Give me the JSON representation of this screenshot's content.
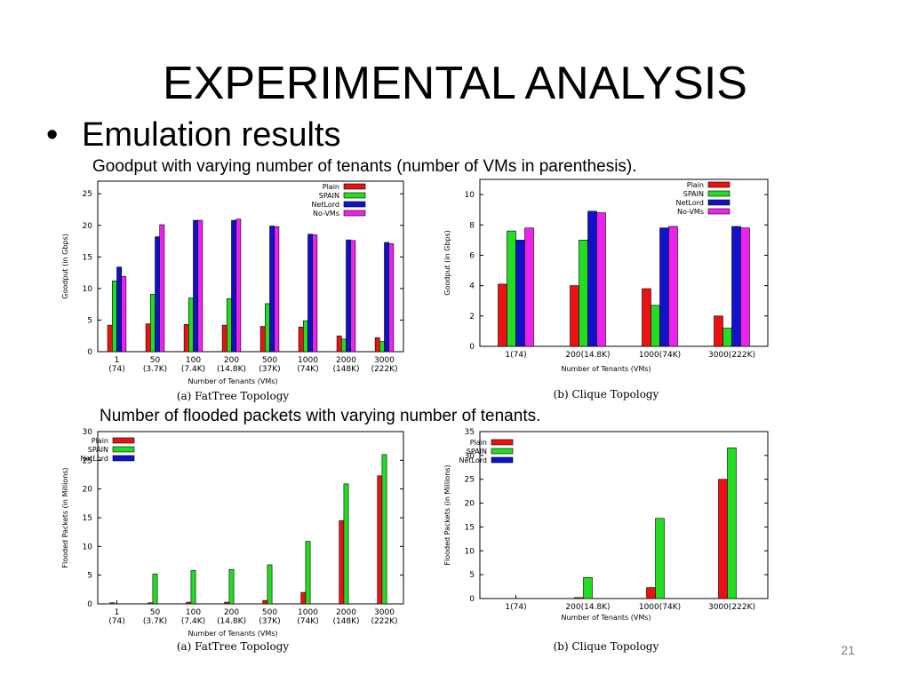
{
  "slide": {
    "title": "EXPERIMENTAL ANALYSIS",
    "bullet": "Emulation results",
    "caption_goodput": "Goodput with varying number of tenants (number of VMs in parenthesis).",
    "caption_flooded": "Number of flooded packets with varying number of tenants.",
    "page_number": "21"
  },
  "colors": {
    "Plain": "#ee1111",
    "SPAIN": "#22dd22",
    "NetLord": "#1111cc",
    "No-VMs": "#ee22ee"
  },
  "chart_data": [
    {
      "id": "chart-a",
      "type": "bar",
      "caption": "(a) FatTree Topology",
      "xlabel": "Number of Tenants (VMs)",
      "ylabel": "Goodput (in Gbps)",
      "ylim": [
        0,
        27
      ],
      "yticks": [
        0,
        5,
        10,
        15,
        20,
        25
      ],
      "categories": [
        [
          "1",
          "(74)"
        ],
        [
          "50",
          "(3.7K)"
        ],
        [
          "100",
          "(7.4K)"
        ],
        [
          "200",
          "(14.8K)"
        ],
        [
          "500",
          "(37K)"
        ],
        [
          "1000",
          "(74K)"
        ],
        [
          "2000",
          "(148K)"
        ],
        [
          "3000",
          "(222K)"
        ]
      ],
      "series": [
        {
          "name": "Plain",
          "values": [
            4.2,
            4.4,
            4.3,
            4.2,
            4.0,
            3.9,
            2.5,
            2.2
          ]
        },
        {
          "name": "SPAIN",
          "values": [
            11.2,
            9.1,
            8.5,
            8.4,
            7.6,
            4.9,
            2.0,
            1.6
          ]
        },
        {
          "name": "NetLord",
          "values": [
            13.4,
            18.2,
            20.8,
            20.8,
            19.9,
            18.6,
            17.7,
            17.3
          ]
        },
        {
          "name": "No-VMs",
          "values": [
            11.9,
            20.1,
            20.8,
            21.0,
            19.8,
            18.5,
            17.6,
            17.1
          ]
        }
      ]
    },
    {
      "id": "chart-b",
      "type": "bar",
      "caption": "(b) Clique Topology",
      "xlabel": "Number of Tenants (VMs)",
      "ylabel": "Goodput (in Gbps)",
      "ylim": [
        0,
        11
      ],
      "yticks": [
        0,
        2,
        4,
        6,
        8,
        10
      ],
      "categories": [
        [
          "1(74)"
        ],
        [
          "200(14.8K)"
        ],
        [
          "1000(74K)"
        ],
        [
          "3000(222K)"
        ]
      ],
      "series": [
        {
          "name": "Plain",
          "values": [
            4.1,
            4.0,
            3.8,
            2.0
          ]
        },
        {
          "name": "SPAIN",
          "values": [
            7.6,
            7.0,
            2.7,
            1.2
          ]
        },
        {
          "name": "NetLord",
          "values": [
            7.0,
            8.9,
            7.8,
            7.9
          ]
        },
        {
          "name": "No-VMs",
          "values": [
            7.8,
            8.8,
            7.9,
            7.8
          ]
        }
      ]
    },
    {
      "id": "chart-c",
      "type": "bar",
      "caption": "(a) FatTree Topology",
      "xlabel": "Number of Tenants (VMs)",
      "ylabel": "Flooded Packets (in Millions)",
      "ylim": [
        0,
        30
      ],
      "yticks": [
        0,
        5,
        10,
        15,
        20,
        25,
        30
      ],
      "categories": [
        [
          "1",
          "(74)"
        ],
        [
          "50",
          "(3.7K)"
        ],
        [
          "100",
          "(7.4K)"
        ],
        [
          "200",
          "(14.8K)"
        ],
        [
          "500",
          "(37K)"
        ],
        [
          "1000",
          "(74K)"
        ],
        [
          "2000",
          "(148K)"
        ],
        [
          "3000",
          "(222K)"
        ]
      ],
      "series": [
        {
          "name": "Plain",
          "values": [
            0.2,
            0.2,
            0.3,
            0.3,
            0.6,
            2.0,
            14.5,
            22.3
          ]
        },
        {
          "name": "SPAIN",
          "values": [
            0,
            5.2,
            5.8,
            6.0,
            6.8,
            10.9,
            20.9,
            26.0
          ]
        },
        {
          "name": "NetLord",
          "values": [
            0,
            0,
            0,
            0,
            0,
            0,
            0,
            0
          ]
        }
      ]
    },
    {
      "id": "chart-d",
      "type": "bar",
      "caption": "(b) Clique Topology",
      "xlabel": "Number of Tenants (VMs)",
      "ylabel": "Flooded Packets (in Millions)",
      "ylim": [
        0,
        35
      ],
      "yticks": [
        0,
        5,
        10,
        15,
        20,
        25,
        30,
        35
      ],
      "categories": [
        [
          "1(74)"
        ],
        [
          "200(14.8K)"
        ],
        [
          "1000(74K)"
        ],
        [
          "3000(222K)"
        ]
      ],
      "series": [
        {
          "name": "Plain",
          "values": [
            0,
            0.2,
            2.3,
            25.0
          ]
        },
        {
          "name": "SPAIN",
          "values": [
            0,
            4.4,
            16.8,
            31.6
          ]
        },
        {
          "name": "NetLord",
          "values": [
            0,
            0,
            0,
            0
          ]
        }
      ]
    }
  ]
}
